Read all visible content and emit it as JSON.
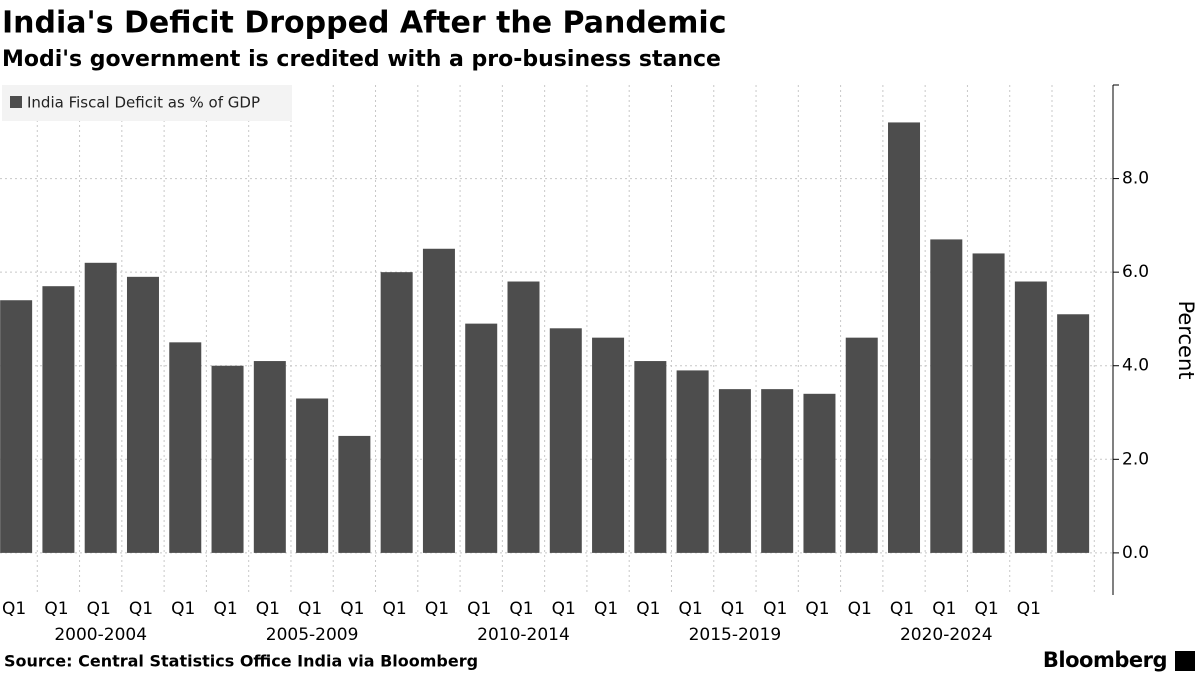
{
  "chart_data": {
    "type": "bar",
    "title": "India's Deficit Dropped After the Pandemic",
    "subtitle": "Modi's government is credited with a pro-business stance",
    "source": "Source: Central Statistics Office India via Bloomberg",
    "brand": "Bloomberg",
    "y_label": "Percent",
    "categories": [
      "Q1",
      "Q1",
      "Q1",
      "Q1",
      "Q1",
      "Q1",
      "Q1",
      "Q1",
      "Q1",
      "Q1",
      "Q1",
      "Q1",
      "Q1",
      "Q1",
      "Q1",
      "Q1",
      "Q1",
      "Q1",
      "Q1",
      "Q1",
      "Q1",
      "Q1",
      "Q1",
      "Q1",
      "Q1",
      null
    ],
    "x_groups": [
      "2000-2004",
      "2005-2009",
      "2010-2014",
      "2015-2019",
      "2020-2024"
    ],
    "series": [
      {
        "name": "India Fiscal Deficit as % of GDP",
        "color": "#4d4d4d",
        "values": [
          5.4,
          5.7,
          6.2,
          5.9,
          4.5,
          4.0,
          4.1,
          3.3,
          2.5,
          6.0,
          6.5,
          4.9,
          5.8,
          4.8,
          4.6,
          4.1,
          3.9,
          3.5,
          3.5,
          3.4,
          4.6,
          9.2,
          6.7,
          6.4,
          5.8,
          5.1
        ]
      }
    ],
    "ylim": [
      -0.9,
      10
    ],
    "yticks": [
      {
        "value": 0,
        "label": "0.0"
      },
      {
        "value": 2,
        "label": "2.0"
      },
      {
        "value": 4,
        "label": "4.0"
      },
      {
        "value": 6,
        "label": "6.0"
      },
      {
        "value": 8,
        "label": "8.0"
      }
    ],
    "grid": true,
    "legend": "top-left"
  }
}
